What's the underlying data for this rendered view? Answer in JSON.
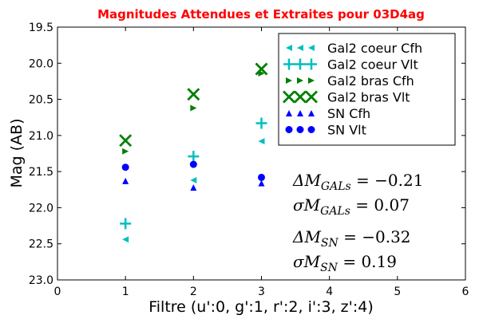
{
  "chart_data": {
    "type": "scatter",
    "title": "Magnitudes Attendues et Extraites pour 03D4ag",
    "xlabel": "Filtre (u':0, g':1, r':2, i':3, z':4)",
    "ylabel": "Mag (AB)",
    "xlim": [
      0,
      6
    ],
    "ylim": [
      23.0,
      19.5
    ],
    "y_inverted": true,
    "xticks": [
      "0",
      "1",
      "2",
      "3",
      "4",
      "5",
      "6"
    ],
    "yticks": [
      "19.5",
      "20.0",
      "20.5",
      "21.0",
      "21.5",
      "22.0",
      "22.5",
      "23.0"
    ],
    "series": [
      {
        "name": "Gal2 coeur Cfh",
        "marker": "triangle-left",
        "color": "#00bfbf",
        "x": [
          1,
          2,
          3
        ],
        "y": [
          22.44,
          21.62,
          21.08
        ]
      },
      {
        "name": "Gal2 coeur Vlt",
        "marker": "plus",
        "color": "#00bfbf",
        "x": [
          1,
          2,
          3
        ],
        "y": [
          22.22,
          21.29,
          20.83
        ]
      },
      {
        "name": "Gal2 bras Cfh",
        "marker": "triangle-right",
        "color": "#008000",
        "x": [
          1,
          2,
          3
        ],
        "y": [
          21.22,
          20.62,
          20.14
        ]
      },
      {
        "name": "Gal2 bras Vlt",
        "marker": "x",
        "color": "#008000",
        "x": [
          1,
          2,
          3
        ],
        "y": [
          21.07,
          20.43,
          20.08
        ]
      },
      {
        "name": "SN Cfh",
        "marker": "triangle-up",
        "color": "#0000ff",
        "x": [
          1,
          2,
          3
        ],
        "y": [
          21.63,
          21.72,
          21.66
        ]
      },
      {
        "name": "SN Vlt",
        "marker": "circle",
        "color": "#0000ff",
        "x": [
          1,
          2,
          3
        ],
        "y": [
          21.44,
          21.4,
          21.58
        ]
      }
    ],
    "legend_position": "top-right",
    "annotations": [
      {
        "main": "ΔM",
        "sub": "GALs",
        "rest": " = −0.21"
      },
      {
        "main": "σM",
        "sub": "GALs",
        "rest": " = 0.07"
      },
      {
        "main": "ΔM",
        "sub": "SN",
        "rest": " = −0.32"
      },
      {
        "main": "σM",
        "sub": "SN",
        "rest": " = 0.19"
      }
    ]
  }
}
